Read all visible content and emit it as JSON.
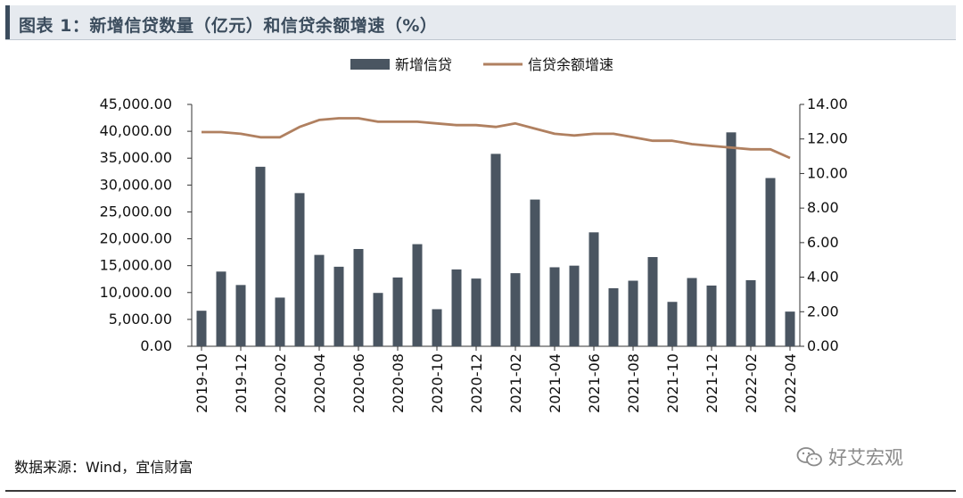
{
  "header": {
    "title": "图表 1：新增信贷数量（亿元）和信贷余额增速（%）"
  },
  "footer": {
    "source": "数据来源：Wind，宜信财富",
    "watermark": "好艾宏观"
  },
  "colors": {
    "bar": "#4a5561",
    "line": "#b08060",
    "axis": "#333333",
    "title_text": "#3b4c5d",
    "title_bg": "#e6eaef"
  },
  "chart_data": {
    "type": "bar",
    "x": [
      "2019-10",
      "2019-11",
      "2019-12",
      "2020-01",
      "2020-02",
      "2020-03",
      "2020-04",
      "2020-05",
      "2020-06",
      "2020-07",
      "2020-08",
      "2020-09",
      "2020-10",
      "2020-11",
      "2020-12",
      "2021-01",
      "2021-02",
      "2021-03",
      "2021-04",
      "2021-05",
      "2021-06",
      "2021-07",
      "2021-08",
      "2021-09",
      "2021-10",
      "2021-11",
      "2021-12",
      "2022-01",
      "2022-02",
      "2022-03",
      "2022-04"
    ],
    "x_tick_labels": [
      "2019-10",
      "2019-12",
      "2020-02",
      "2020-04",
      "2020-06",
      "2020-08",
      "2020-10",
      "2020-12",
      "2021-02",
      "2021-04",
      "2021-06",
      "2021-08",
      "2021-10",
      "2021-12",
      "2022-02",
      "2022-04"
    ],
    "series": [
      {
        "name": "新增信贷",
        "type": "bar",
        "axis": "left",
        "values": [
          6613,
          13900,
          11400,
          33400,
          9057,
          28500,
          17000,
          14800,
          18100,
          9927,
          12800,
          19000,
          6898,
          14300,
          12600,
          35800,
          13600,
          27300,
          14700,
          15000,
          21200,
          10800,
          12200,
          16600,
          8262,
          12700,
          11300,
          39800,
          12300,
          31300,
          6454
        ]
      },
      {
        "name": "信贷余额增速",
        "type": "line",
        "axis": "right",
        "values": [
          12.4,
          12.4,
          12.3,
          12.1,
          12.1,
          12.7,
          13.1,
          13.2,
          13.2,
          13.0,
          13.0,
          13.0,
          12.9,
          12.8,
          12.8,
          12.7,
          12.9,
          12.6,
          12.3,
          12.2,
          12.3,
          12.3,
          12.1,
          11.9,
          11.9,
          11.7,
          11.6,
          11.5,
          11.4,
          11.4,
          10.9
        ]
      }
    ],
    "y_left": {
      "ylim": [
        0,
        45000
      ],
      "tick_labels": [
        "0.00",
        "5,000.00",
        "10,000.00",
        "15,000.00",
        "20,000.00",
        "25,000.00",
        "30,000.00",
        "35,000.00",
        "40,000.00",
        "45,000.00"
      ]
    },
    "y_right": {
      "ylim": [
        0,
        14
      ],
      "tick_labels": [
        "0.00",
        "2.00",
        "4.00",
        "6.00",
        "8.00",
        "10.00",
        "12.00",
        "14.00"
      ]
    },
    "legend": {
      "placement": "top-center",
      "entries": [
        "新增信贷",
        "信贷余额增速"
      ]
    },
    "grid": false
  }
}
